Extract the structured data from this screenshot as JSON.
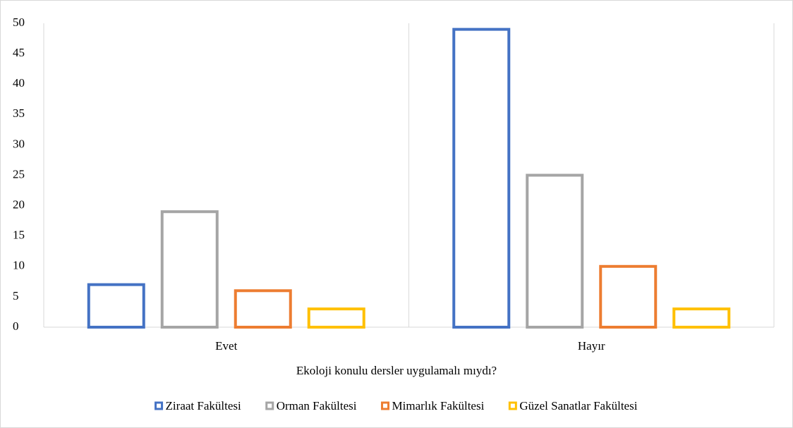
{
  "chart_data": {
    "type": "bar",
    "x_label": "Ekoloji konulu dersler uygulamalı mıydı?",
    "categories": [
      "Evet",
      "Hayır"
    ],
    "series": [
      {
        "name": "Ziraat Fakültesi",
        "color": "#4472c4",
        "values": [
          7,
          49
        ]
      },
      {
        "name": "Orman Fakültesi",
        "color": "#a5a5a5",
        "values": [
          19,
          25
        ]
      },
      {
        "name": "Mimarlık Fakültesi",
        "color": "#ed7d31",
        "values": [
          6,
          10
        ]
      },
      {
        "name": "Güzel Sanatlar Fakültesi",
        "color": "#ffc000",
        "values": [
          3,
          3
        ]
      }
    ],
    "ylim": [
      0,
      50
    ],
    "yticks": [
      0,
      5,
      10,
      15,
      20,
      25,
      30,
      35,
      40,
      45,
      50
    ],
    "grid": false,
    "legend": "bottom"
  }
}
